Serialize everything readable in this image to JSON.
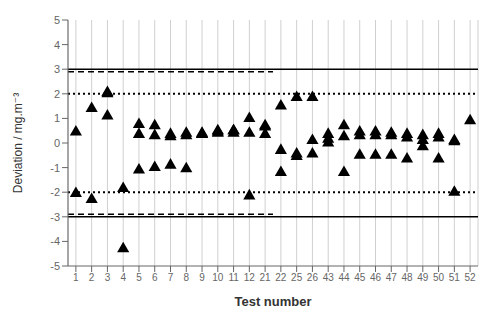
{
  "chart_data": {
    "type": "scatter",
    "xlabel": "Test number",
    "ylabel": "Deviation / mg.m⁻³",
    "categories": [
      1,
      2,
      3,
      4,
      5,
      6,
      7,
      8,
      9,
      10,
      11,
      12,
      21,
      22,
      25,
      26,
      43,
      44,
      45,
      46,
      47,
      48,
      49,
      50,
      51,
      52
    ],
    "points": [
      {
        "category": 1,
        "value": 0.45
      },
      {
        "category": 1,
        "value": -2.05
      },
      {
        "category": 2,
        "value": 1.4
      },
      {
        "category": 2,
        "value": -2.3
      },
      {
        "category": 3,
        "value": 2.05
      },
      {
        "category": 3,
        "value": 2.0
      },
      {
        "category": 3,
        "value": 1.1
      },
      {
        "category": 4,
        "value": -4.3
      },
      {
        "category": 4,
        "value": -1.85
      },
      {
        "category": 5,
        "value": 0.75
      },
      {
        "category": 5,
        "value": 0.35
      },
      {
        "category": 5,
        "value": -1.1
      },
      {
        "category": 6,
        "value": 0.7
      },
      {
        "category": 6,
        "value": 0.3
      },
      {
        "category": 6,
        "value": -1.0
      },
      {
        "category": 7,
        "value": 0.35
      },
      {
        "category": 7,
        "value": 0.25
      },
      {
        "category": 7,
        "value": -0.9
      },
      {
        "category": 8,
        "value": 0.3
      },
      {
        "category": 8,
        "value": 0.4
      },
      {
        "category": 8,
        "value": -1.05
      },
      {
        "category": 9,
        "value": 0.35
      },
      {
        "category": 9,
        "value": 0.4
      },
      {
        "category": 9,
        "value": 0.35
      },
      {
        "category": 10,
        "value": 0.5
      },
      {
        "category": 10,
        "value": 0.45
      },
      {
        "category": 10,
        "value": 0.4
      },
      {
        "category": 11,
        "value": 0.5
      },
      {
        "category": 11,
        "value": 0.5
      },
      {
        "category": 11,
        "value": 0.4
      },
      {
        "category": 12,
        "value": 0.4
      },
      {
        "category": 12,
        "value": 1.0
      },
      {
        "category": 12,
        "value": -2.15
      },
      {
        "category": 21,
        "value": 0.35
      },
      {
        "category": 21,
        "value": 0.65
      },
      {
        "category": 21,
        "value": 0.7
      },
      {
        "category": 22,
        "value": 1.5
      },
      {
        "category": 22,
        "value": -1.2
      },
      {
        "category": 22,
        "value": -0.3
      },
      {
        "category": 25,
        "value": 1.85
      },
      {
        "category": 25,
        "value": -0.55
      },
      {
        "category": 25,
        "value": -0.45
      },
      {
        "category": 26,
        "value": 1.85
      },
      {
        "category": 26,
        "value": -0.45
      },
      {
        "category": 26,
        "value": 0.1
      },
      {
        "category": 43,
        "value": 0.15
      },
      {
        "category": 43,
        "value": 0.35
      },
      {
        "category": 43,
        "value": 0.0
      },
      {
        "category": 44,
        "value": 0.7
      },
      {
        "category": 44,
        "value": 0.25
      },
      {
        "category": 44,
        "value": -1.2
      },
      {
        "category": 45,
        "value": 0.45
      },
      {
        "category": 45,
        "value": 0.3
      },
      {
        "category": 45,
        "value": -0.5
      },
      {
        "category": 46,
        "value": 0.45
      },
      {
        "category": 46,
        "value": 0.3
      },
      {
        "category": 46,
        "value": -0.5
      },
      {
        "category": 47,
        "value": 0.4
      },
      {
        "category": 47,
        "value": -0.5
      },
      {
        "category": 47,
        "value": 0.3
      },
      {
        "category": 48,
        "value": 0.35
      },
      {
        "category": 48,
        "value": -0.65
      },
      {
        "category": 48,
        "value": 0.2
      },
      {
        "category": 49,
        "value": 0.3
      },
      {
        "category": 49,
        "value": -0.15
      },
      {
        "category": 49,
        "value": 0.1
      },
      {
        "category": 50,
        "value": 0.35
      },
      {
        "category": 50,
        "value": -0.65
      },
      {
        "category": 50,
        "value": 0.2
      },
      {
        "category": 51,
        "value": 0.05
      },
      {
        "category": 51,
        "value": 0.1
      },
      {
        "category": 51,
        "value": -2.0
      },
      {
        "category": 52,
        "value": 0.9
      }
    ],
    "color": "#000000",
    "marker": "triangle",
    "lines": [
      {
        "y": 3.0,
        "line_style": "solid",
        "color": "#000000"
      },
      {
        "y": -3.0,
        "line_style": "solid",
        "color": "#000000"
      },
      {
        "y": 2.9,
        "line_style": "dashed",
        "color": "#000000",
        "from": 1,
        "to": 21
      },
      {
        "y": -2.9,
        "line_style": "dashed",
        "color": "#000000",
        "from": 1,
        "to": 21
      },
      {
        "y": 2.0,
        "line_style": "dotted",
        "color": "#000000"
      },
      {
        "y": -2.0,
        "line_style": "dotted",
        "color": "#000000"
      }
    ],
    "ylim": [
      -5,
      5
    ],
    "yticks": [
      -5,
      -4,
      -3,
      -2,
      -1,
      0,
      1,
      2,
      3,
      4,
      5
    ],
    "grid": "x"
  }
}
